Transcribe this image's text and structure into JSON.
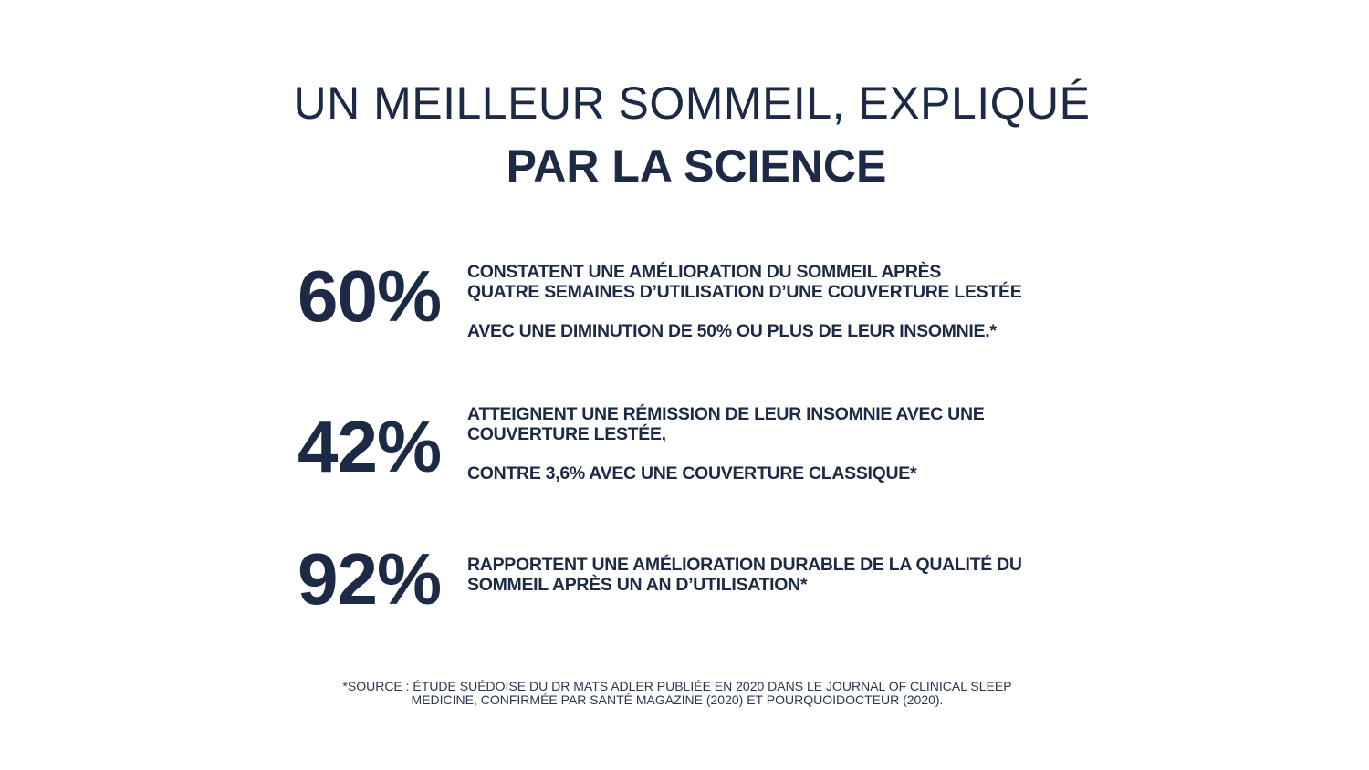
{
  "title": {
    "line1": "UN MEILLEUR SOMMEIL, EXPLIQUÉ",
    "line2": "PAR LA SCIENCE"
  },
  "stats": [
    {
      "value": "60%",
      "lines": [
        "CONSTATENT UNE AMÉLIORATION DU SOMMEIL APRÈS",
        "QUATRE SEMAINES D’UTILISATION D’UNE COUVERTURE LESTÉE"
      ],
      "secondary": "AVEC UNE DIMINUTION DE 50% OU PLUS DE LEUR INSOMNIE.*"
    },
    {
      "value": "42%",
      "lines": [
        "ATTEIGNENT UNE RÉMISSION DE LEUR INSOMNIE AVEC UNE",
        "COUVERTURE LESTÉE,"
      ],
      "secondary": "CONTRE 3,6% AVEC UNE COUVERTURE CLASSIQUE*"
    },
    {
      "value": "92%",
      "lines": [
        "RAPPORTENT UNE AMÉLIORATION DURABLE DE LA QUALITÉ DU",
        "SOMMEIL APRÈS UN AN D’UTILISATION*"
      ]
    }
  ],
  "footnote": {
    "line1": "*SOURCE : ÉTUDE SUÉDOISE DU DR MATS ADLER PUBLIÉE EN 2020 DANS LE JOURNAL OF CLINICAL SLEEP",
    "line2": "MEDICINE, CONFIRMÉE PAR SANTÉ MAGAZINE (2020) ET POURQUOIDOCTEUR (2020)."
  },
  "colors": {
    "text": "#1d2a45",
    "background": "#ffffff"
  }
}
